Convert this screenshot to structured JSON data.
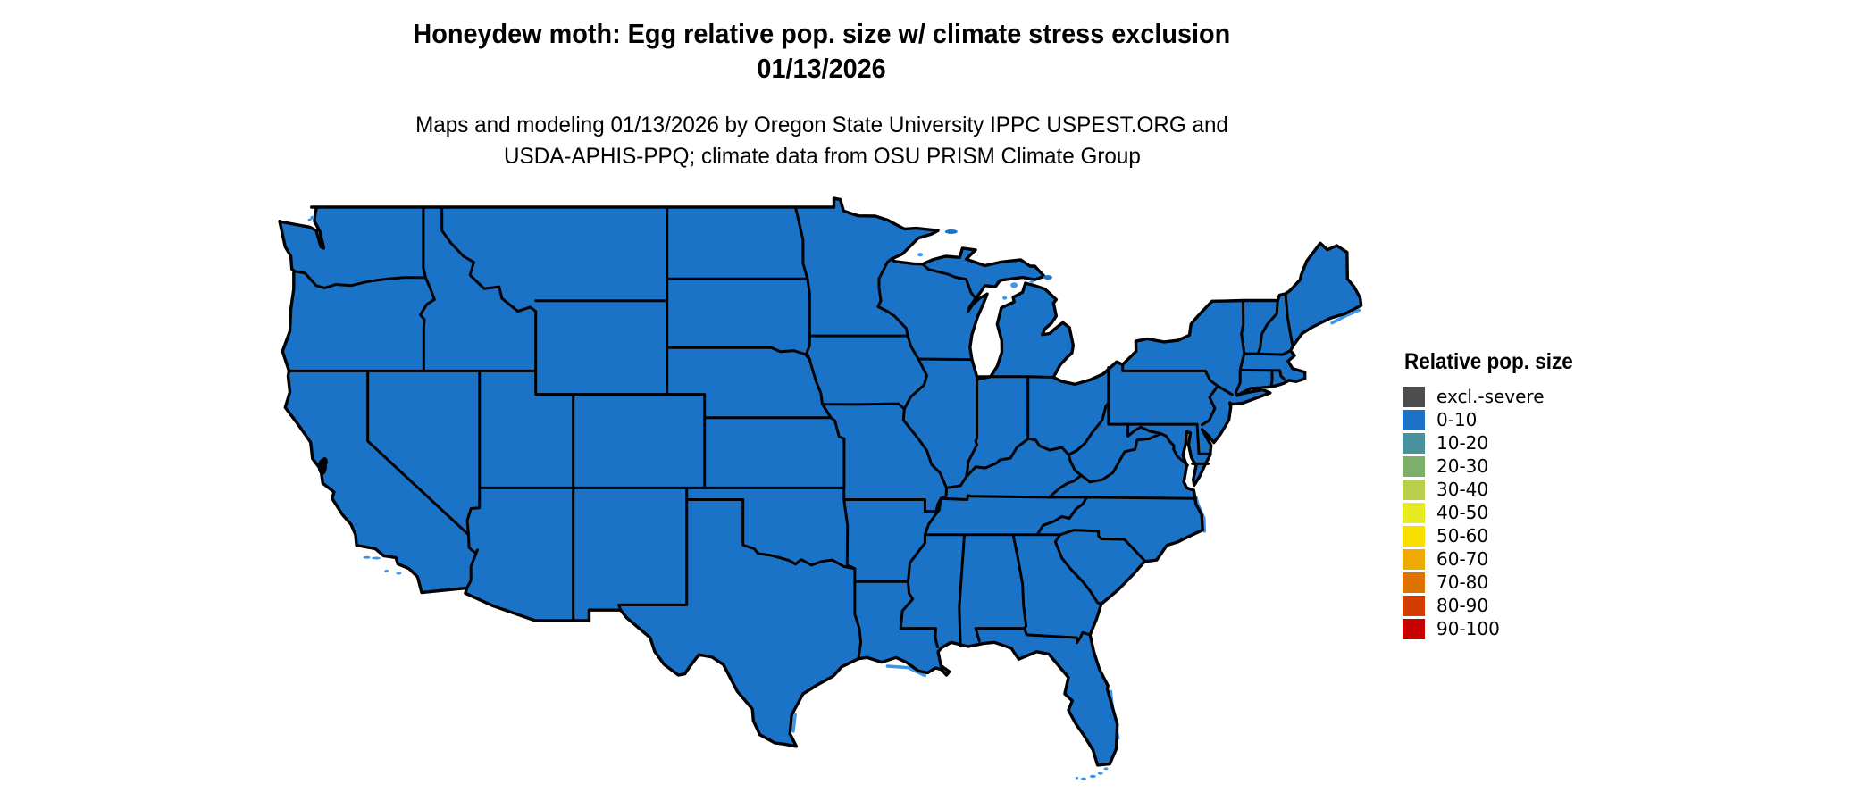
{
  "title": {
    "line1": "Honeydew moth: Egg relative pop. size w/ climate stress exclusion",
    "line2": "01/13/2026"
  },
  "subtitle": {
    "line1": "Maps and modeling 01/13/2026 by Oregon State University IPPC USPEST.ORG and",
    "line2": "USDA-APHIS-PPQ; climate data from OSU PRISM Climate Group"
  },
  "legend": {
    "title": "Relative pop. size",
    "items": [
      {
        "label": "excl.-severe",
        "color": "#4D4D4D"
      },
      {
        "label": "0-10",
        "color": "#1B73C8"
      },
      {
        "label": "10-20",
        "color": "#4A919E"
      },
      {
        "label": "20-30",
        "color": "#7DAF6B"
      },
      {
        "label": "30-40",
        "color": "#B7CF4A"
      },
      {
        "label": "40-50",
        "color": "#E7EC21"
      },
      {
        "label": "50-60",
        "color": "#F9DF00"
      },
      {
        "label": "60-70",
        "color": "#EDAA00"
      },
      {
        "label": "70-80",
        "color": "#E07200"
      },
      {
        "label": "80-90",
        "color": "#D43D02"
      },
      {
        "label": "90-100",
        "color": "#C70100"
      }
    ]
  },
  "map": {
    "region": "Contiguous United States",
    "all_states_value": "0-10",
    "fill_color": "#1B73C8",
    "border_color": "#000000",
    "fringe_color": "#3E96EC",
    "background_color": "#FFFFFF"
  }
}
